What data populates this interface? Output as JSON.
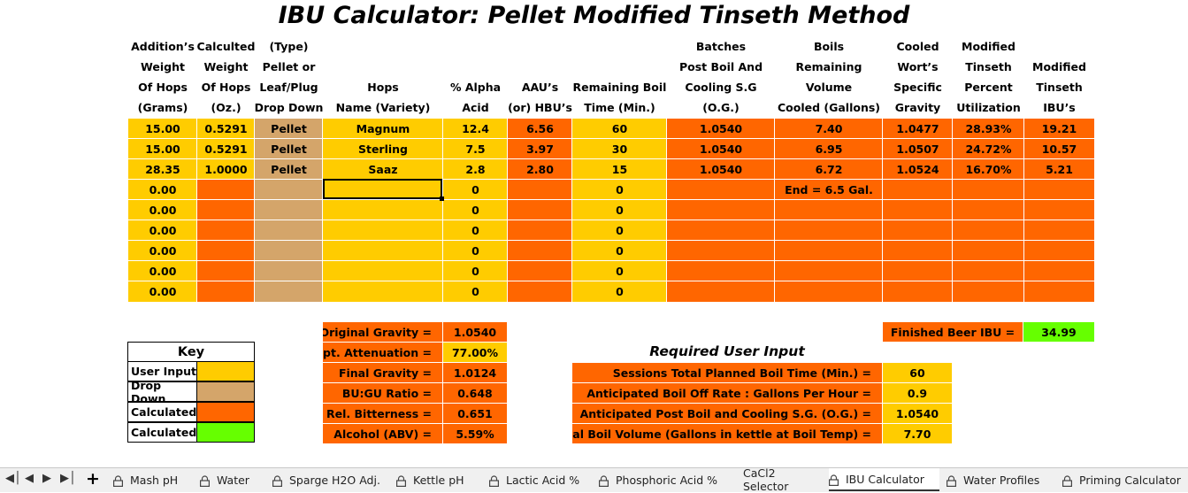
{
  "title": "IBU Calculator: Pellet Modified Tinseth Method",
  "headers": [
    [
      "Addition’s",
      "Weight",
      "Of Hops",
      "(Grams)"
    ],
    [
      "Calculted",
      "Weight",
      "Of Hops",
      "(Oz.)"
    ],
    [
      "(Type)",
      "Pellet or",
      "Leaf/Plug",
      "Drop Down"
    ],
    [
      "Hops",
      "Name (Variety)"
    ],
    [
      "% Alpha",
      "Acid"
    ],
    [
      "AAU’s",
      "(or) HBU’s"
    ],
    [
      "Remaining Boil",
      "Time (Min.)"
    ],
    [
      "Batches",
      "Post Boil And",
      "Cooling S.G (O.G.)"
    ],
    [
      "Boils",
      "Remaining",
      "Volume",
      "Cooled (Gallons)"
    ],
    [
      "Cooled",
      "Wort’s",
      "Specific",
      "Gravity"
    ],
    [
      "Modified",
      "Tinseth",
      "Percent",
      "Utilization"
    ],
    [
      "Modified",
      "Tinseth",
      "IBU’s"
    ]
  ],
  "rows": [
    [
      "15.00",
      "0.5291",
      "Pellet",
      "Magnum",
      "12.4",
      "6.56",
      "60",
      "1.0540",
      "7.40",
      "1.0477",
      "28.93%",
      "19.21"
    ],
    [
      "15.00",
      "0.5291",
      "Pellet",
      "Sterling",
      "7.5",
      "3.97",
      "30",
      "1.0540",
      "6.95",
      "1.0507",
      "24.72%",
      "10.57"
    ],
    [
      "28.35",
      "1.0000",
      "Pellet",
      "Saaz",
      "2.8",
      "2.80",
      "15",
      "1.0540",
      "6.72",
      "1.0524",
      "16.70%",
      "5.21"
    ],
    [
      "0.00",
      "",
      "",
      "",
      "0",
      "",
      "0",
      "",
      "End = 6.5 Gal.",
      "",
      "",
      ""
    ],
    [
      "0.00",
      "",
      "",
      "",
      "0",
      "",
      "0",
      "",
      "",
      "",
      "",
      ""
    ],
    [
      "0.00",
      "",
      "",
      "",
      "0",
      "",
      "0",
      "",
      "",
      "",
      "",
      ""
    ],
    [
      "0.00",
      "",
      "",
      "",
      "0",
      "",
      "0",
      "",
      "",
      "",
      "",
      ""
    ],
    [
      "0.00",
      "",
      "",
      "",
      "0",
      "",
      "0",
      "",
      "",
      "",
      "",
      ""
    ],
    [
      "0.00",
      "",
      "",
      "",
      "0",
      "",
      "0",
      "",
      "",
      "",
      "",
      ""
    ]
  ],
  "gravity": [
    {
      "label": "Original Gravity =",
      "value": "1.0540",
      "value_color": "orange"
    },
    {
      "label": "Appt. Attenuation =",
      "value": "77.00%",
      "value_color": "yellow"
    },
    {
      "label": "Final Gravity =",
      "value": "1.0124",
      "value_color": "orange"
    },
    {
      "label": "BU:GU Ratio =",
      "value": "0.648",
      "value_color": "orange"
    },
    {
      "label": "Rel. Bitterness =",
      "value": "0.651",
      "value_color": "orange"
    },
    {
      "label": "Alcohol (ABV) =",
      "value": "5.59%",
      "value_color": "orange"
    }
  ],
  "finished": {
    "label": "Finished Beer IBU =",
    "value": "34.99"
  },
  "key": {
    "title": "Key",
    "items": [
      {
        "label": "User Input",
        "color": "#ffcc00"
      },
      {
        "label": "Drop Down",
        "color": "#d4a56a"
      },
      {
        "label": "Calculated",
        "color": "#ff6600"
      },
      {
        "label": "Calculated",
        "color": "#66ff00"
      }
    ]
  },
  "required": {
    "title": "Required User Input",
    "items": [
      {
        "label": "Sessions Total Planned Boil Time (Min.) =",
        "value": "60"
      },
      {
        "label": "Anticipated Boil Off Rate : Gallons Per Hour =",
        "value": "0.9"
      },
      {
        "label": "Anticipated Post Boil and Cooling S.G. (O.G.) =",
        "value": "1.0540"
      },
      {
        "label": "Initial Boil Volume (Gallons in kettle at Boil Temp) =",
        "value": "7.70"
      }
    ]
  },
  "tabs": [
    "Mash pH",
    "Water",
    "Sparge H2O Adj.",
    "Kettle pH",
    "Lactic Acid %",
    "Phosphoric Acid %",
    "CaCl2 Selector",
    "IBU Calculator",
    "Water Profiles",
    "Priming Calculator"
  ],
  "active_tab": "IBU Calculator",
  "colors": {
    "user_input": "#ffcc00",
    "drop_down": "#d4a56a",
    "calculated": "#ff6600",
    "calculated_green": "#66ff00"
  }
}
